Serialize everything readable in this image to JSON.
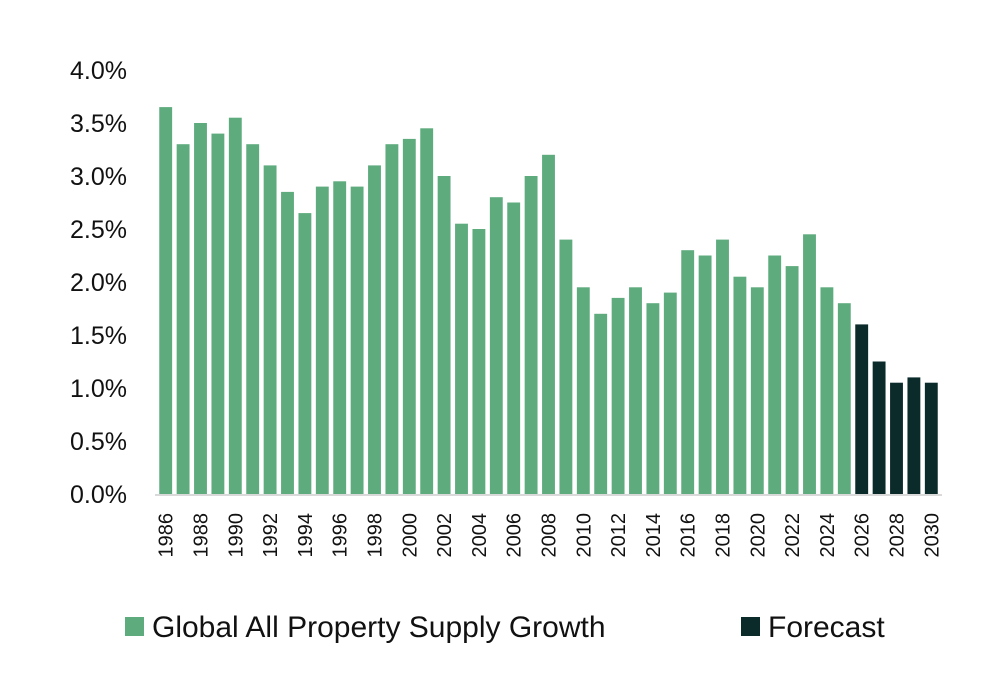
{
  "colors": {
    "actual": "#5eab7e",
    "forecast": "#0b2b2b",
    "axis": "#d9d9d9"
  },
  "legend": {
    "series_label": "Global All Property Supply Growth",
    "forecast_label": "Forecast"
  },
  "chart_data": {
    "type": "bar",
    "categories": [
      "1986",
      "1987",
      "1988",
      "1989",
      "1990",
      "1991",
      "1992",
      "1993",
      "1994",
      "1995",
      "1996",
      "1997",
      "1998",
      "1999",
      "2000",
      "2001",
      "2002",
      "2003",
      "2004",
      "2005",
      "2006",
      "2007",
      "2008",
      "2009",
      "2010",
      "2011",
      "2012",
      "2013",
      "2014",
      "2015",
      "2016",
      "2017",
      "2018",
      "2019",
      "2020",
      "2021",
      "2022",
      "2023",
      "2024",
      "2025",
      "2026",
      "2027",
      "2028",
      "2029",
      "2030"
    ],
    "series": [
      {
        "name": "Global All Property Supply Growth",
        "values": [
          3.65,
          3.3,
          3.5,
          3.4,
          3.55,
          3.3,
          3.1,
          2.85,
          2.65,
          2.9,
          2.95,
          2.9,
          3.1,
          3.3,
          3.35,
          3.45,
          3.0,
          2.55,
          2.5,
          2.8,
          2.75,
          3.0,
          3.2,
          2.4,
          1.95,
          1.7,
          1.85,
          1.95,
          1.8,
          1.9,
          2.3,
          2.25,
          2.4,
          2.05,
          1.95,
          2.25,
          2.15,
          2.45,
          1.95,
          1.8,
          null,
          null,
          null,
          null,
          null
        ]
      },
      {
        "name": "Forecast",
        "values": [
          null,
          null,
          null,
          null,
          null,
          null,
          null,
          null,
          null,
          null,
          null,
          null,
          null,
          null,
          null,
          null,
          null,
          null,
          null,
          null,
          null,
          null,
          null,
          null,
          null,
          null,
          null,
          null,
          null,
          null,
          null,
          null,
          null,
          null,
          null,
          null,
          null,
          null,
          null,
          null,
          1.6,
          1.25,
          1.05,
          1.1,
          1.05
        ]
      }
    ],
    "ylim": [
      0,
      4.0
    ],
    "yticks": [
      "0.0%",
      "0.5%",
      "1.0%",
      "1.5%",
      "2.0%",
      "2.5%",
      "3.0%",
      "3.5%",
      "4.0%"
    ],
    "xtick_labels": [
      "1986",
      "1988",
      "1990",
      "1992",
      "1994",
      "1996",
      "1998",
      "2000",
      "2002",
      "2004",
      "2006",
      "2008",
      "2010",
      "2012",
      "2014",
      "2016",
      "2018",
      "2020",
      "2022",
      "2024",
      "2026",
      "2028",
      "2030"
    ],
    "grid": false,
    "legend_position": "bottom"
  }
}
